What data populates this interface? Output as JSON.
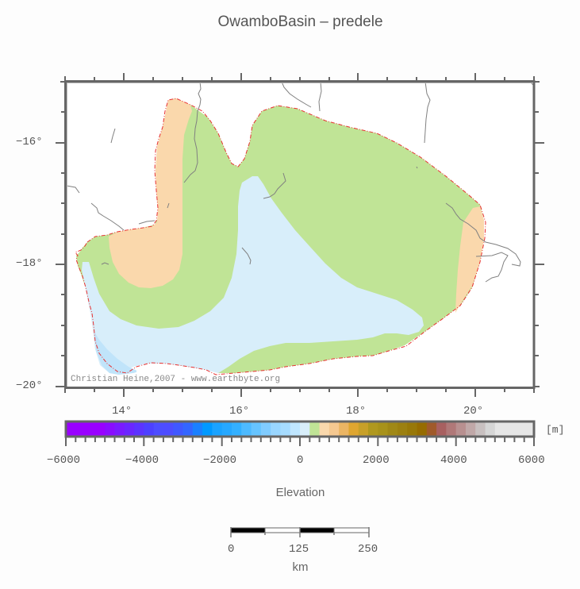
{
  "title": "OwamboBasin – predele",
  "map": {
    "credit": "Christian Heine,2007 - www.earthbyte.org",
    "lon_labels": [
      "14°",
      "16°",
      "18°",
      "20°"
    ],
    "lat_labels": [
      "−16°",
      "−18°",
      "−20°"
    ],
    "extent": {
      "lon": [
        13,
        21
      ],
      "lat": [
        -20,
        -15
      ]
    },
    "legend_classes": [
      {
        "range_m": "0-250",
        "color": "#c0e496"
      },
      {
        "range_m": "250-500",
        "color": "#fad8ac"
      },
      {
        "range_m": "-250-0",
        "color": "#d8eefa"
      },
      {
        "range_m": "-500--250",
        "color": "#c0e4fa"
      }
    ],
    "boundary_color": "#e83030"
  },
  "colorbar": {
    "unit": "[m]",
    "tick_labels": [
      "−6000",
      "−4000",
      "−2000",
      "0",
      "2000",
      "4000",
      "6000"
    ],
    "range": [
      -6000,
      6000
    ],
    "colors": [
      "#9900ff",
      "#9900ff",
      "#9900ff",
      "#9900ff",
      "#8a0cff",
      "#7a1aff",
      "#6b26ff",
      "#5c33ff",
      "#4d40ff",
      "#4d4dff",
      "#4d4dff",
      "#4058ff",
      "#3366ff",
      "#1a80ff",
      "#0099ff",
      "#1aa3ff",
      "#26a8ff",
      "#33b0ff",
      "#4dbaff",
      "#66c4ff",
      "#80ccff",
      "#99d6ff",
      "#a6dcff",
      "#bfe6ff",
      "#d8eefa",
      "#c0e496",
      "#fad8ac",
      "#f5c890",
      "#ebb563",
      "#dfa630",
      "#c8a028",
      "#b0981e",
      "#a8921a",
      "#a08816",
      "#9c8010",
      "#987808",
      "#966c00",
      "#a05a2a",
      "#a86060",
      "#b07878",
      "#b89090",
      "#c0a8a8",
      "#c8c0c0",
      "#d6d6d6",
      "#e6e6e6",
      "#e6e6e6",
      "#e6e6e6",
      "#e6e6e6"
    ],
    "title": "Elevation"
  },
  "scalebar": {
    "labels": [
      "0",
      "125",
      "250"
    ],
    "unit": "km"
  }
}
